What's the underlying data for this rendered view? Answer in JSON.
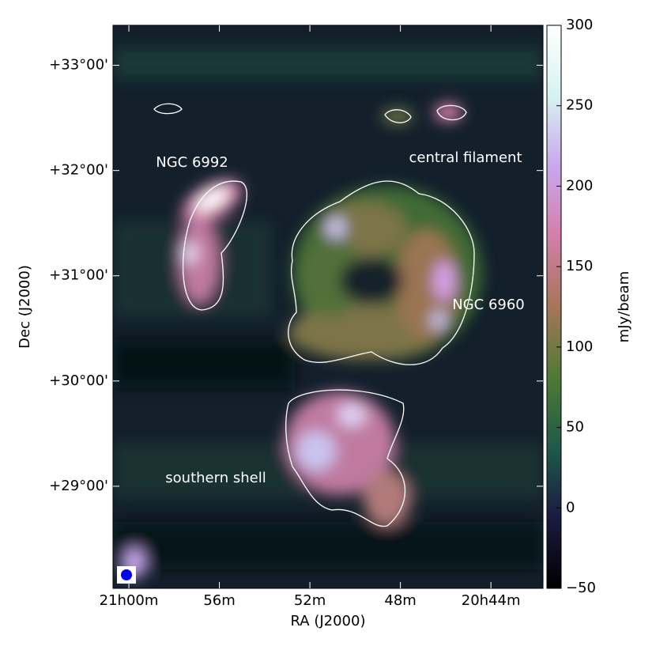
{
  "chart_data": {
    "type": "image",
    "x_label": "RA (J2000)",
    "y_label": "Dec (J2000)",
    "xlim": [
      1260.7,
      1241.7
    ],
    "xticks": [
      {
        "value": 1260,
        "label": "21h00m"
      },
      {
        "value": 1256,
        "label": "56m"
      },
      {
        "value": 1252,
        "label": "52m"
      },
      {
        "value": 1248,
        "label": "48m"
      },
      {
        "value": 1244,
        "label": "20h44m"
      }
    ],
    "ylim": [
      28.03,
      33.38
    ],
    "yticks": [
      {
        "value": 29,
        "label": "+29°00'"
      },
      {
        "value": 30,
        "label": "+30°00'"
      },
      {
        "value": 31,
        "label": "+31°00'"
      },
      {
        "value": 32,
        "label": "+32°00'"
      },
      {
        "value": 33,
        "label": "+33°00'"
      }
    ],
    "colorbar": {
      "label": "mJy/beam",
      "lim": [
        -50,
        300
      ],
      "ticks": [
        {
          "value": -50,
          "label": "−50"
        },
        0,
        50,
        100,
        150,
        200,
        250,
        300
      ],
      "colormap": [
        "#000000",
        "#1a1a40",
        "#1f5a4a",
        "#4f7a35",
        "#a5765a",
        "#d27fa8",
        "#c9a8ee",
        "#d6f3f1",
        "#ffffff"
      ]
    },
    "annotations": [
      "NGC 6992",
      "central filament",
      "NGC 6960",
      "southern shell"
    ]
  }
}
